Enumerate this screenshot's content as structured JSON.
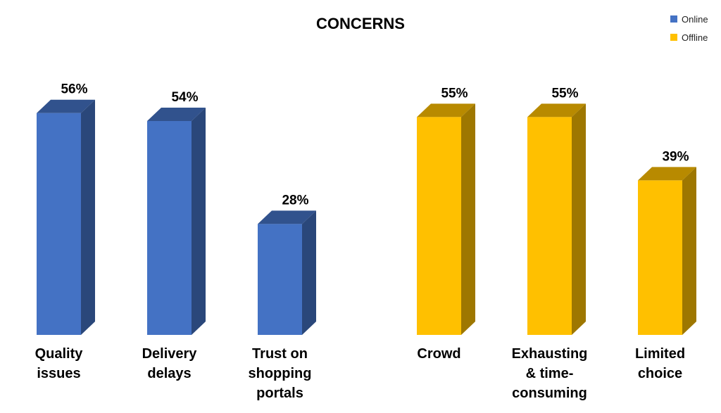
{
  "chart_data": {
    "type": "bar",
    "title": "CONCERNS",
    "value_suffix": "%",
    "ylim": [
      0,
      60
    ],
    "legend": {
      "position": "top-right"
    },
    "series": [
      {
        "name": "Online",
        "color": "#4472C4",
        "categories": [
          "Quality issues",
          "Delivery delays",
          "Trust on shopping portals"
        ],
        "category_lines": [
          [
            "Quality",
            "issues"
          ],
          [
            "Delivery",
            "delays"
          ],
          [
            "Trust on",
            "shopping",
            "portals"
          ]
        ],
        "values": [
          56,
          54,
          28
        ]
      },
      {
        "name": "Offline",
        "color": "#FFC000",
        "categories": [
          "Crowd",
          "Exhausting & time-consuming",
          "Limited choice"
        ],
        "category_lines": [
          [
            "Crowd"
          ],
          [
            "Exhausting",
            "& time-",
            "consuming"
          ],
          [
            "Limited",
            "choice"
          ]
        ],
        "values": [
          55,
          55,
          39
        ]
      }
    ]
  }
}
